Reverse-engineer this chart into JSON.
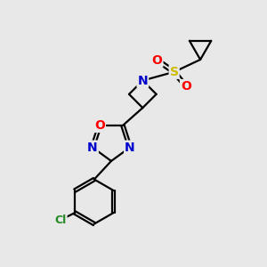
{
  "background_color": "#e8e8e8",
  "atom_colors": {
    "C": "#000000",
    "N": "#0000cc",
    "O": "#ff0000",
    "S": "#ccbb00",
    "Cl": "#228822"
  },
  "bond_color": "#000000",
  "bond_width": 1.6,
  "font_size_atoms": 10,
  "font_size_small": 9,
  "figsize": [
    3.0,
    3.0
  ],
  "dpi": 100
}
